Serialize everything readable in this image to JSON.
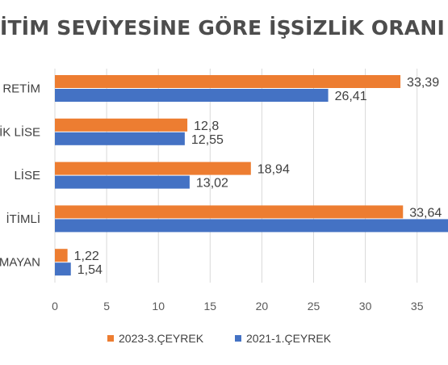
{
  "chart_data": {
    "type": "bar",
    "orientation": "horizontal",
    "title": "İTİM SEVİYESİNE GÖRE İŞSİZLİK ORANI",
    "categories": [
      "RETİM",
      "İK LİSE",
      "LİSE",
      "İTİMLİ",
      "MAYAN"
    ],
    "series": [
      {
        "name": "2023-3.ÇEYREK",
        "color": "#ed7d31",
        "values": [
          33.39,
          12.8,
          18.94,
          33.64,
          1.22
        ],
        "labels": [
          "33,39",
          "12,8",
          "18,94",
          "33,64",
          "1,22"
        ]
      },
      {
        "name": "2021-1.ÇEYREK",
        "color": "#4472c4",
        "values": [
          26.41,
          12.55,
          13.02,
          null,
          1.54
        ],
        "labels": [
          "26,41",
          "12,55",
          "13,02",
          "",
          "1,54"
        ]
      }
    ],
    "xlim": [
      0,
      40
    ],
    "xticks": [
      "0",
      "5",
      "10",
      "15",
      "20",
      "25",
      "30",
      "35"
    ],
    "grid": true,
    "legend_position": "bottom"
  }
}
